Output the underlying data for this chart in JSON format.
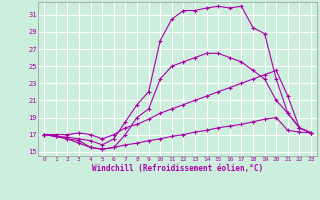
{
  "xlabel": "Windchill (Refroidissement éolien,°C)",
  "bg_color": "#cceedd",
  "grid_color": "#ffffff",
  "line_color": "#aa00aa",
  "ylim": [
    14.5,
    32.5
  ],
  "xlim": [
    -0.5,
    23.5
  ],
  "yticks": [
    15,
    17,
    19,
    21,
    23,
    25,
    27,
    29,
    31
  ],
  "xticks": [
    0,
    1,
    2,
    3,
    4,
    5,
    6,
    7,
    8,
    9,
    10,
    11,
    12,
    13,
    14,
    15,
    16,
    17,
    18,
    19,
    20,
    21,
    22,
    23
  ],
  "line_top_x": [
    0,
    1,
    2,
    3,
    4,
    5,
    6,
    7,
    8,
    9,
    10,
    11,
    12,
    13,
    14,
    15,
    16,
    17,
    18,
    19,
    20,
    21,
    22,
    23
  ],
  "line_top_y": [
    17.0,
    16.8,
    16.7,
    16.5,
    16.3,
    15.8,
    16.5,
    18.5,
    20.5,
    22.0,
    28.0,
    30.5,
    31.5,
    31.5,
    31.8,
    32.0,
    31.8,
    32.0,
    29.5,
    28.8,
    23.5,
    19.5,
    17.8,
    17.2
  ],
  "line_mid1_x": [
    0,
    1,
    2,
    3,
    4,
    5,
    6,
    7,
    8,
    9,
    10,
    11,
    12,
    13,
    14,
    15,
    16,
    17,
    18,
    19,
    20,
    21,
    22,
    23
  ],
  "line_mid1_y": [
    17.0,
    16.8,
    16.5,
    16.0,
    15.5,
    15.3,
    15.5,
    17.0,
    19.0,
    20.0,
    23.5,
    25.0,
    25.5,
    26.0,
    26.5,
    26.5,
    26.0,
    25.5,
    24.5,
    23.5,
    21.0,
    19.5,
    17.8,
    17.2
  ],
  "line_mid2_x": [
    0,
    1,
    2,
    3,
    4,
    5,
    6,
    7,
    8,
    9,
    10,
    11,
    12,
    13,
    14,
    15,
    16,
    17,
    18,
    19,
    20,
    21,
    22,
    23
  ],
  "line_mid2_y": [
    17.0,
    17.0,
    17.0,
    17.2,
    17.0,
    16.5,
    17.0,
    17.8,
    18.2,
    18.8,
    19.5,
    20.0,
    20.5,
    21.0,
    21.5,
    22.0,
    22.5,
    23.0,
    23.5,
    24.0,
    24.5,
    21.5,
    17.8,
    17.2
  ],
  "line_bot_x": [
    0,
    1,
    2,
    3,
    4,
    5,
    6,
    7,
    8,
    9,
    10,
    11,
    12,
    13,
    14,
    15,
    16,
    17,
    18,
    19,
    20,
    21,
    22,
    23
  ],
  "line_bot_y": [
    17.0,
    16.8,
    16.5,
    16.3,
    15.5,
    15.3,
    15.5,
    15.8,
    16.0,
    16.3,
    16.5,
    16.8,
    17.0,
    17.3,
    17.5,
    17.8,
    18.0,
    18.2,
    18.5,
    18.8,
    19.0,
    17.5,
    17.3,
    17.2
  ]
}
